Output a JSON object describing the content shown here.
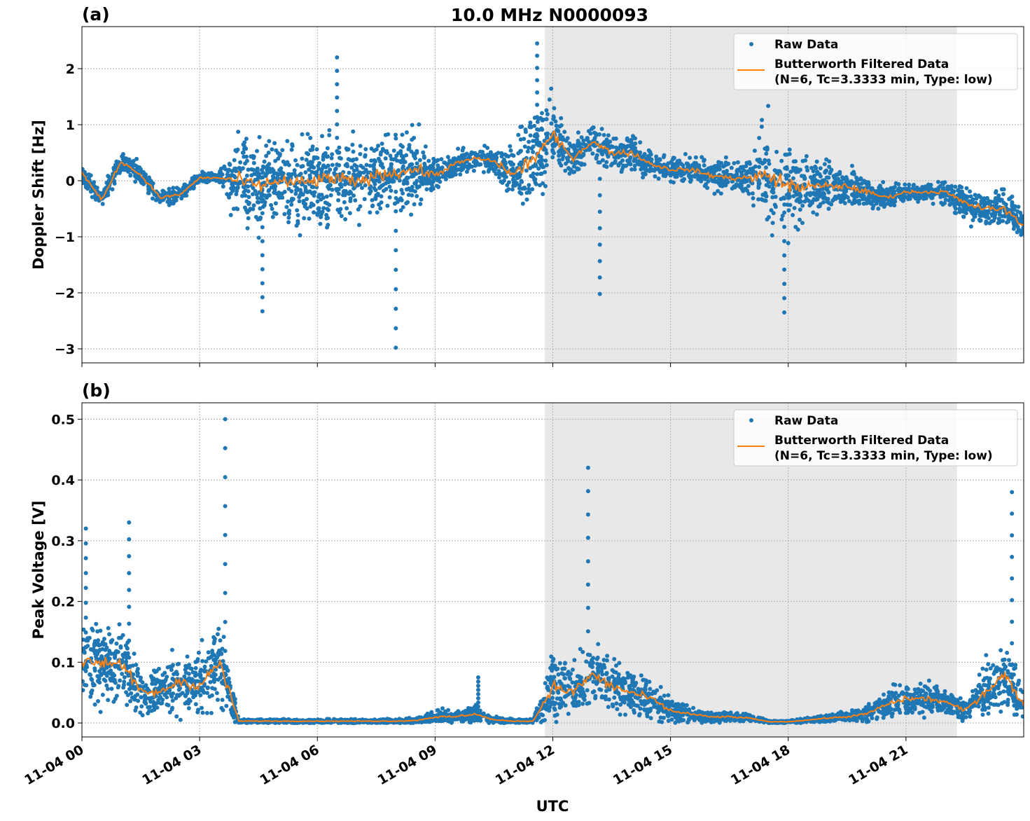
{
  "title": "10.0 MHz N0000093",
  "colors": {
    "raw": "#1f77b4",
    "filtered": "#ff7f0e",
    "shade": "#e8e8e8",
    "grid": "#b0b0b0"
  },
  "chart_data": [
    {
      "type": "scatter",
      "panel_label": "(a)",
      "ylabel": "Doppler Shift [Hz]",
      "xlabel": "",
      "xlim_hours": [
        0,
        24
      ],
      "ylim": [
        -3.25,
        2.75
      ],
      "yticks": [
        -3,
        -2,
        -1,
        0,
        1,
        2
      ],
      "ytick_labels": [
        "−3",
        "−2",
        "−1",
        "0",
        "1",
        "2"
      ],
      "grid": true,
      "legend": {
        "placement": "top-right",
        "entries": [
          "Raw Data",
          "Butterworth Filtered Data",
          "(N=6, Tc=3.3333 min, Type: low)"
        ]
      },
      "shaded_region_hours": [
        11.8,
        22.3
      ],
      "sample_hours_step": 0.5,
      "filtered": [
        0.15,
        -0.35,
        0.35,
        0.1,
        -0.3,
        -0.25,
        0.05,
        0.05,
        0.0,
        -0.1,
        0.0,
        -0.05,
        0.0,
        0.05,
        -0.05,
        0.1,
        0.15,
        0.2,
        0.1,
        0.3,
        0.4,
        0.35,
        0.1,
        0.4,
        0.8,
        0.4,
        0.7,
        0.5,
        0.5,
        0.3,
        0.2,
        0.2,
        0.1,
        0.05,
        0.05,
        0.1,
        -0.1,
        -0.1,
        -0.1,
        -0.1,
        -0.2,
        -0.3,
        -0.2,
        -0.2,
        -0.2,
        -0.4,
        -0.5,
        -0.5,
        -0.8
      ],
      "raw_spread": [
        0.15,
        0.15,
        0.2,
        0.15,
        0.15,
        0.12,
        0.1,
        0.1,
        0.7,
        0.7,
        0.7,
        0.7,
        0.7,
        0.7,
        0.6,
        0.6,
        0.6,
        0.6,
        0.3,
        0.2,
        0.2,
        0.2,
        0.5,
        0.8,
        0.6,
        0.3,
        0.3,
        0.3,
        0.3,
        0.2,
        0.2,
        0.2,
        0.25,
        0.25,
        0.3,
        0.9,
        0.8,
        0.5,
        0.4,
        0.3,
        0.25,
        0.2,
        0.15,
        0.15,
        0.2,
        0.3,
        0.3,
        0.3,
        0.3
      ],
      "raw_peaks": [
        {
          "t": 8.0,
          "v": -2.98
        },
        {
          "t": 11.6,
          "v": 2.45
        },
        {
          "t": 13.2,
          "v": -2.02
        },
        {
          "t": 17.9,
          "v": -2.35
        },
        {
          "t": 4.6,
          "v": -2.33
        },
        {
          "t": 6.5,
          "v": 2.2
        }
      ]
    },
    {
      "type": "scatter",
      "panel_label": "(b)",
      "ylabel": "Peak Voltage [V]",
      "xlabel": "UTC",
      "xlim_hours": [
        0,
        24
      ],
      "ylim": [
        -0.023,
        0.527
      ],
      "yticks": [
        0.0,
        0.1,
        0.2,
        0.3,
        0.4,
        0.5
      ],
      "ytick_labels": [
        "0.0",
        "0.1",
        "0.2",
        "0.3",
        "0.4",
        "0.5"
      ],
      "xticks_hours": [
        0,
        3,
        6,
        9,
        12,
        15,
        18,
        21
      ],
      "xtick_labels": [
        "11-04 00",
        "11-04 03",
        "11-04 06",
        "11-04 09",
        "11-04 12",
        "11-04 15",
        "11-04 18",
        "11-04 21"
      ],
      "grid": true,
      "legend": {
        "placement": "top-right",
        "entries": [
          "Raw Data",
          "Butterworth Filtered Data",
          "(N=6, Tc=3.3333 min, Type: low)"
        ]
      },
      "shaded_region_hours": [
        11.8,
        22.3
      ],
      "sample_hours_step": 0.5,
      "filtered": [
        0.1,
        0.1,
        0.1,
        0.05,
        0.05,
        0.07,
        0.06,
        0.1,
        0.003,
        0.003,
        0.003,
        0.003,
        0.003,
        0.003,
        0.003,
        0.003,
        0.003,
        0.004,
        0.01,
        0.01,
        0.015,
        0.005,
        0.003,
        0.003,
        0.06,
        0.05,
        0.08,
        0.06,
        0.05,
        0.04,
        0.02,
        0.015,
        0.01,
        0.01,
        0.008,
        0.002,
        0.002,
        0.005,
        0.008,
        0.01,
        0.015,
        0.03,
        0.04,
        0.04,
        0.035,
        0.02,
        0.05,
        0.08,
        0.03
      ],
      "raw_spread": [
        0.06,
        0.06,
        0.06,
        0.04,
        0.03,
        0.05,
        0.05,
        0.08,
        0.003,
        0.003,
        0.003,
        0.003,
        0.003,
        0.003,
        0.003,
        0.003,
        0.003,
        0.004,
        0.01,
        0.01,
        0.012,
        0.005,
        0.003,
        0.003,
        0.05,
        0.04,
        0.05,
        0.04,
        0.035,
        0.03,
        0.02,
        0.012,
        0.008,
        0.008,
        0.006,
        0.002,
        0.002,
        0.004,
        0.006,
        0.008,
        0.012,
        0.02,
        0.025,
        0.025,
        0.02,
        0.015,
        0.04,
        0.05,
        0.03
      ],
      "raw_peaks": [
        {
          "t": 3.65,
          "v": 0.5
        },
        {
          "t": 12.9,
          "v": 0.42
        },
        {
          "t": 23.7,
          "v": 0.38
        },
        {
          "t": 10.1,
          "v": 0.075
        },
        {
          "t": 1.2,
          "v": 0.33
        },
        {
          "t": 0.1,
          "v": 0.32
        }
      ]
    }
  ]
}
